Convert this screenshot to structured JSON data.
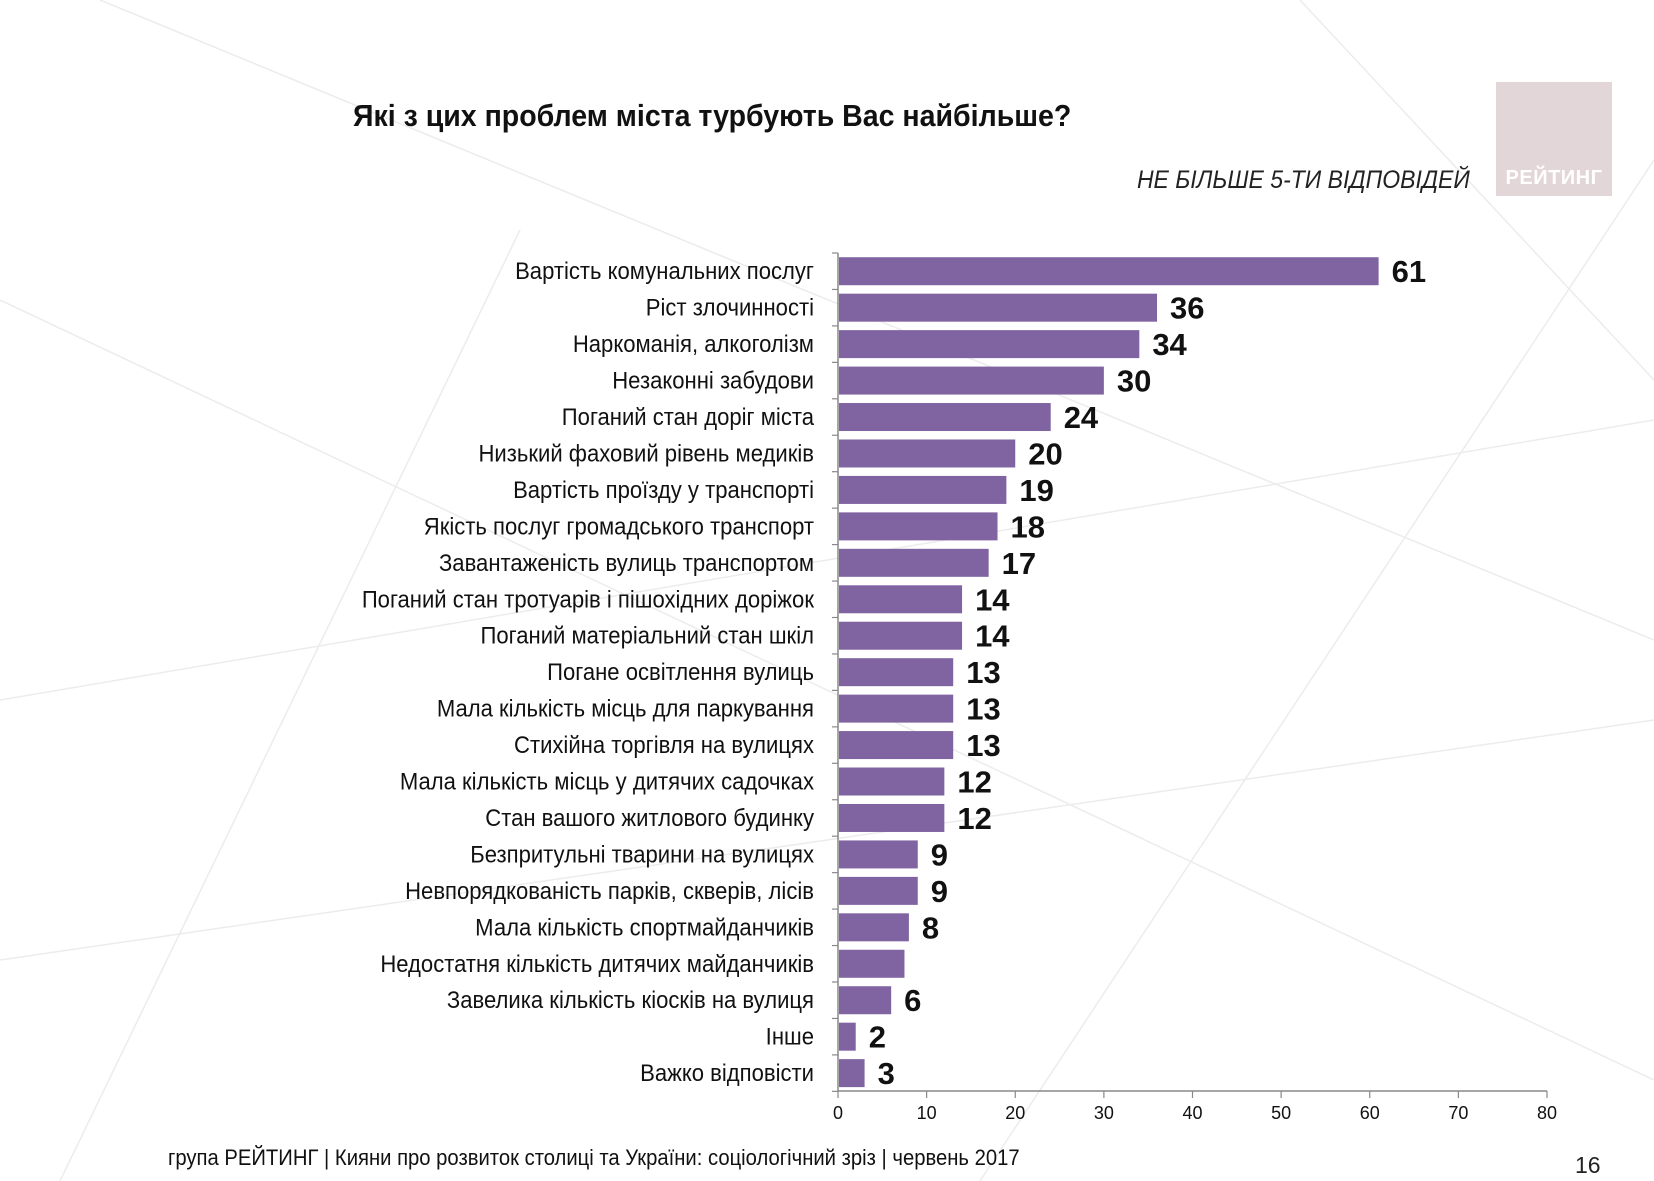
{
  "title": "Які з цих проблем міста турбують Вас найбільше?",
  "subtitle": "НЕ БІЛЬШЕ 5-ТИ ВІДПОВІДЕЙ",
  "logo_text": "РЕЙТИНГ",
  "footer": "група РЕЙТИНГ  | Кияни про розвиток столиці та України: соціологічний зріз |  червень 2017",
  "page_number": "16",
  "colors": {
    "bar": "#8064a2",
    "axis": "#888888",
    "text": "#111111"
  },
  "chart_data": {
    "type": "bar",
    "orientation": "horizontal",
    "title": "",
    "xlabel": "",
    "ylabel": "",
    "xlim": [
      0,
      80
    ],
    "xticks": [
      0,
      10,
      20,
      30,
      40,
      50,
      60,
      70,
      80
    ],
    "grid": false,
    "legend": "none",
    "categories": [
      "Вартість комунальних послуг",
      "Ріст злочинності",
      "Наркоманія, алкоголізм",
      "Незаконні забудови",
      "Поганий стан доріг міста",
      "Низький фаховий рівень медиків",
      "Вартість проїзду у транспорті",
      "Якість послуг громадського транспорт",
      "Завантаженість вулиць транспортом",
      "Поганий стан тротуарів і пішохідних доріжок",
      "Поганий матеріальний стан шкіл",
      "Погане освітлення вулиць",
      "Мала кількість  місць для паркування",
      "Стихійна торгівля на вулицях",
      "Мала кількість місць у дитячих садочках",
      "Стан вашого житлового будинку",
      "Безпритульні тварини на вулицях",
      "Невпорядкованість парків, скверів, лісів",
      "Мала кількість спортмайданчиків",
      "Недостатня кількість дитячих майданчиків",
      "Завелика кількість кіосків на вулиця",
      "Інше",
      "Важко відповісти"
    ],
    "values": [
      61,
      36,
      34,
      30,
      24,
      20,
      19,
      18,
      17,
      14,
      14,
      13,
      13,
      13,
      12,
      12,
      9,
      9,
      8,
      7.5,
      6,
      2,
      3
    ],
    "labels": [
      "61",
      "36",
      "34",
      "30",
      "24",
      "20",
      "19",
      "18",
      "17",
      "14",
      "14",
      "13",
      "13",
      "13",
      "12",
      "12",
      "9",
      "9",
      "8",
      "",
      "6",
      "2",
      "3"
    ]
  }
}
